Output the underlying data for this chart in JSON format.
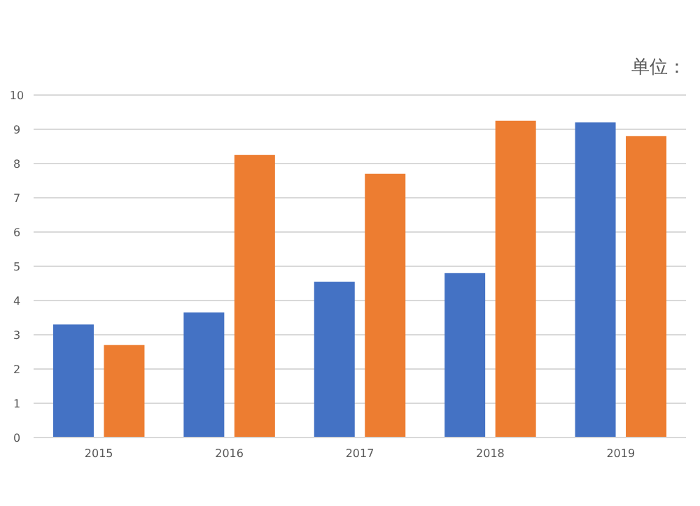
{
  "chart_data": {
    "type": "bar",
    "annotations": [
      "单位："
    ],
    "categories": [
      "2015",
      "2016",
      "2017",
      "2018",
      "2019"
    ],
    "series": [
      {
        "color": "#4472c4",
        "values": [
          3.3,
          3.65,
          4.55,
          4.8,
          9.2
        ]
      },
      {
        "color": "#ed7d31",
        "values": [
          2.7,
          8.25,
          7.7,
          9.25,
          8.8
        ]
      }
    ],
    "ylim": [
      0,
      10
    ],
    "yticks": [
      0,
      1,
      2,
      3,
      4,
      5,
      6,
      7,
      8,
      9,
      10
    ],
    "grid": "y"
  }
}
